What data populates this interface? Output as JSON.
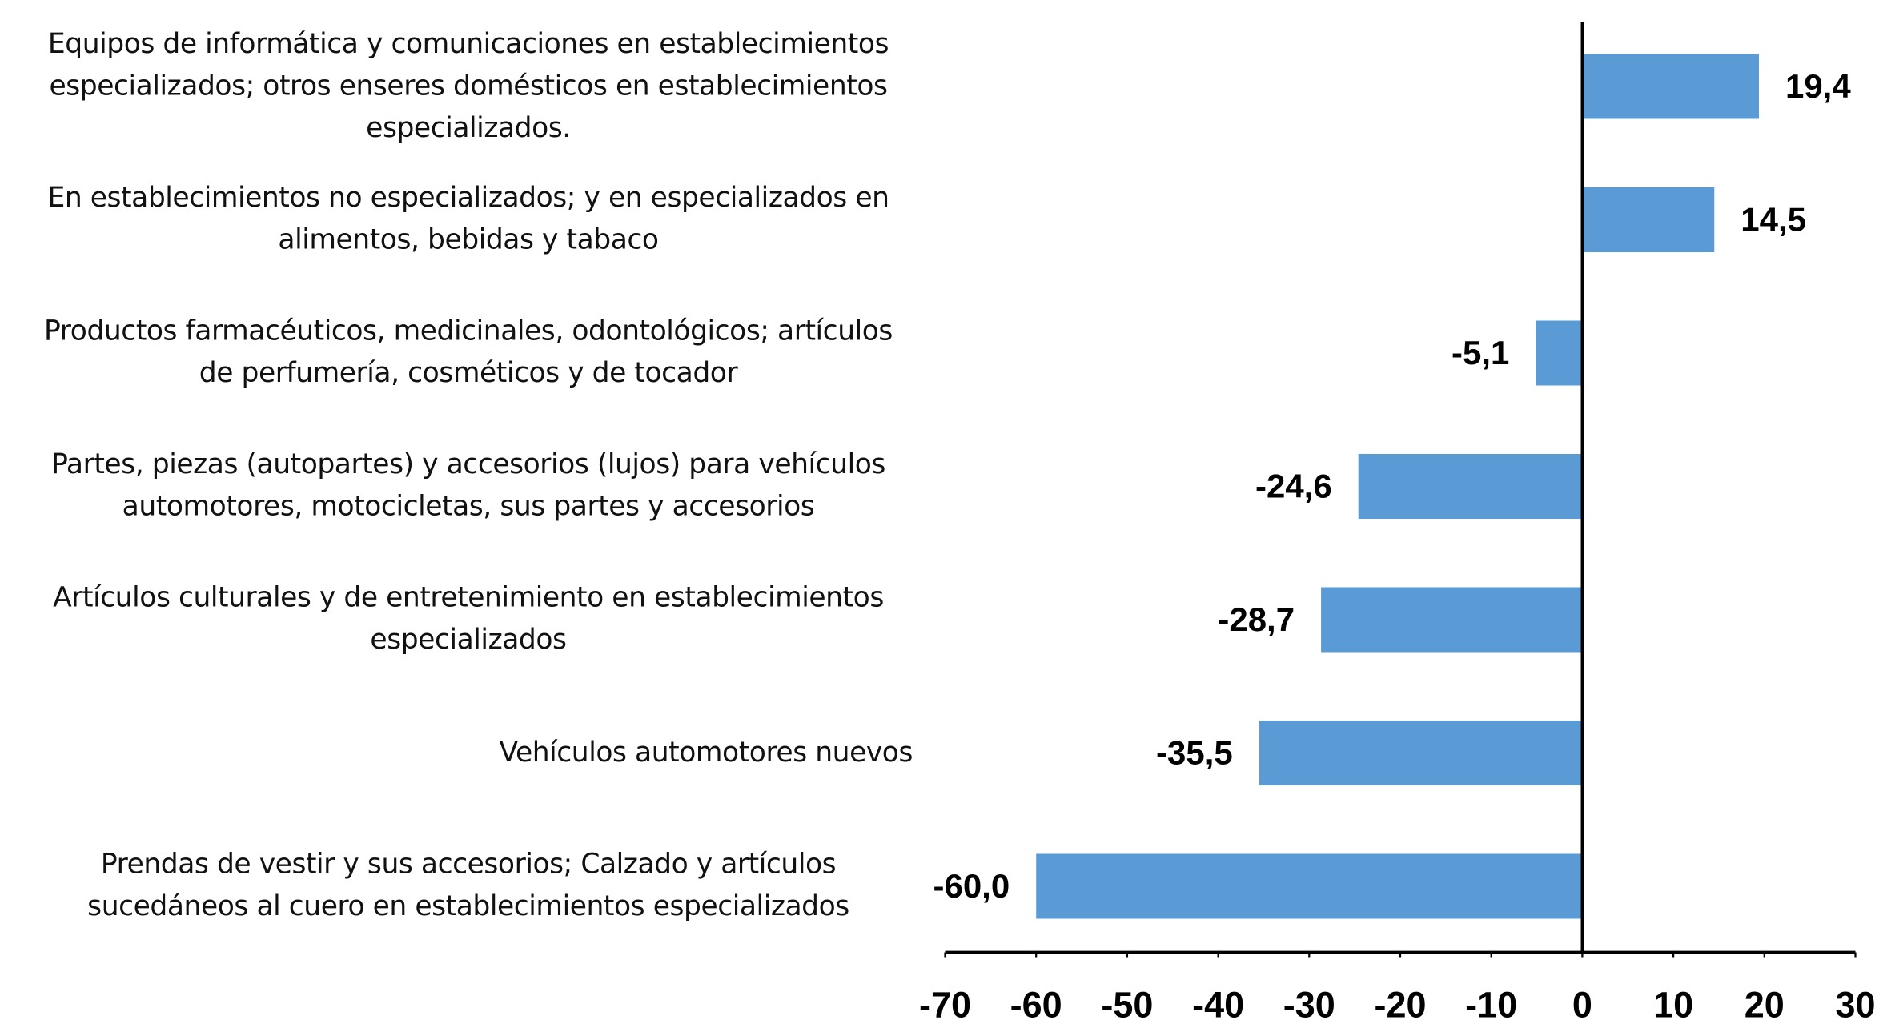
{
  "chart_data": {
    "type": "bar",
    "orientation": "horizontal",
    "categories": [
      "Equipos de informática y comunicaciones en establecimientos especializados;  otros enseres domésticos en establecimientos especializados.",
      "En establecimientos no especializados; y en especializados en alimentos, bebidas y tabaco",
      "Productos farmacéuticos, medicinales, odontológicos; artículos de perfumería, cosméticos y de tocador",
      "Partes, piezas (autopartes) y accesorios (lujos) para vehículos automotores, motocicletas, sus partes y accesorios",
      "Artículos culturales y de entretenimiento en establecimientos especializados",
      "Vehículos automotores nuevos",
      "Prendas de vestir y sus accesorios; Calzado y artículos sucedáneos al cuero en establecimientos especializados"
    ],
    "values": [
      19.4,
      14.5,
      -5.1,
      -24.6,
      -28.7,
      -35.5,
      -60.0
    ],
    "value_labels": [
      "19,4",
      "14,5",
      "-5,1",
      "-24,6",
      "-28,7",
      "-35,5",
      "-60,0"
    ],
    "color": "#5b9bd5",
    "xlim": [
      -70,
      30
    ],
    "xticks": [
      -70,
      -60,
      -50,
      -40,
      -30,
      -20,
      -10,
      0,
      10,
      20,
      30
    ],
    "grid": false
  }
}
